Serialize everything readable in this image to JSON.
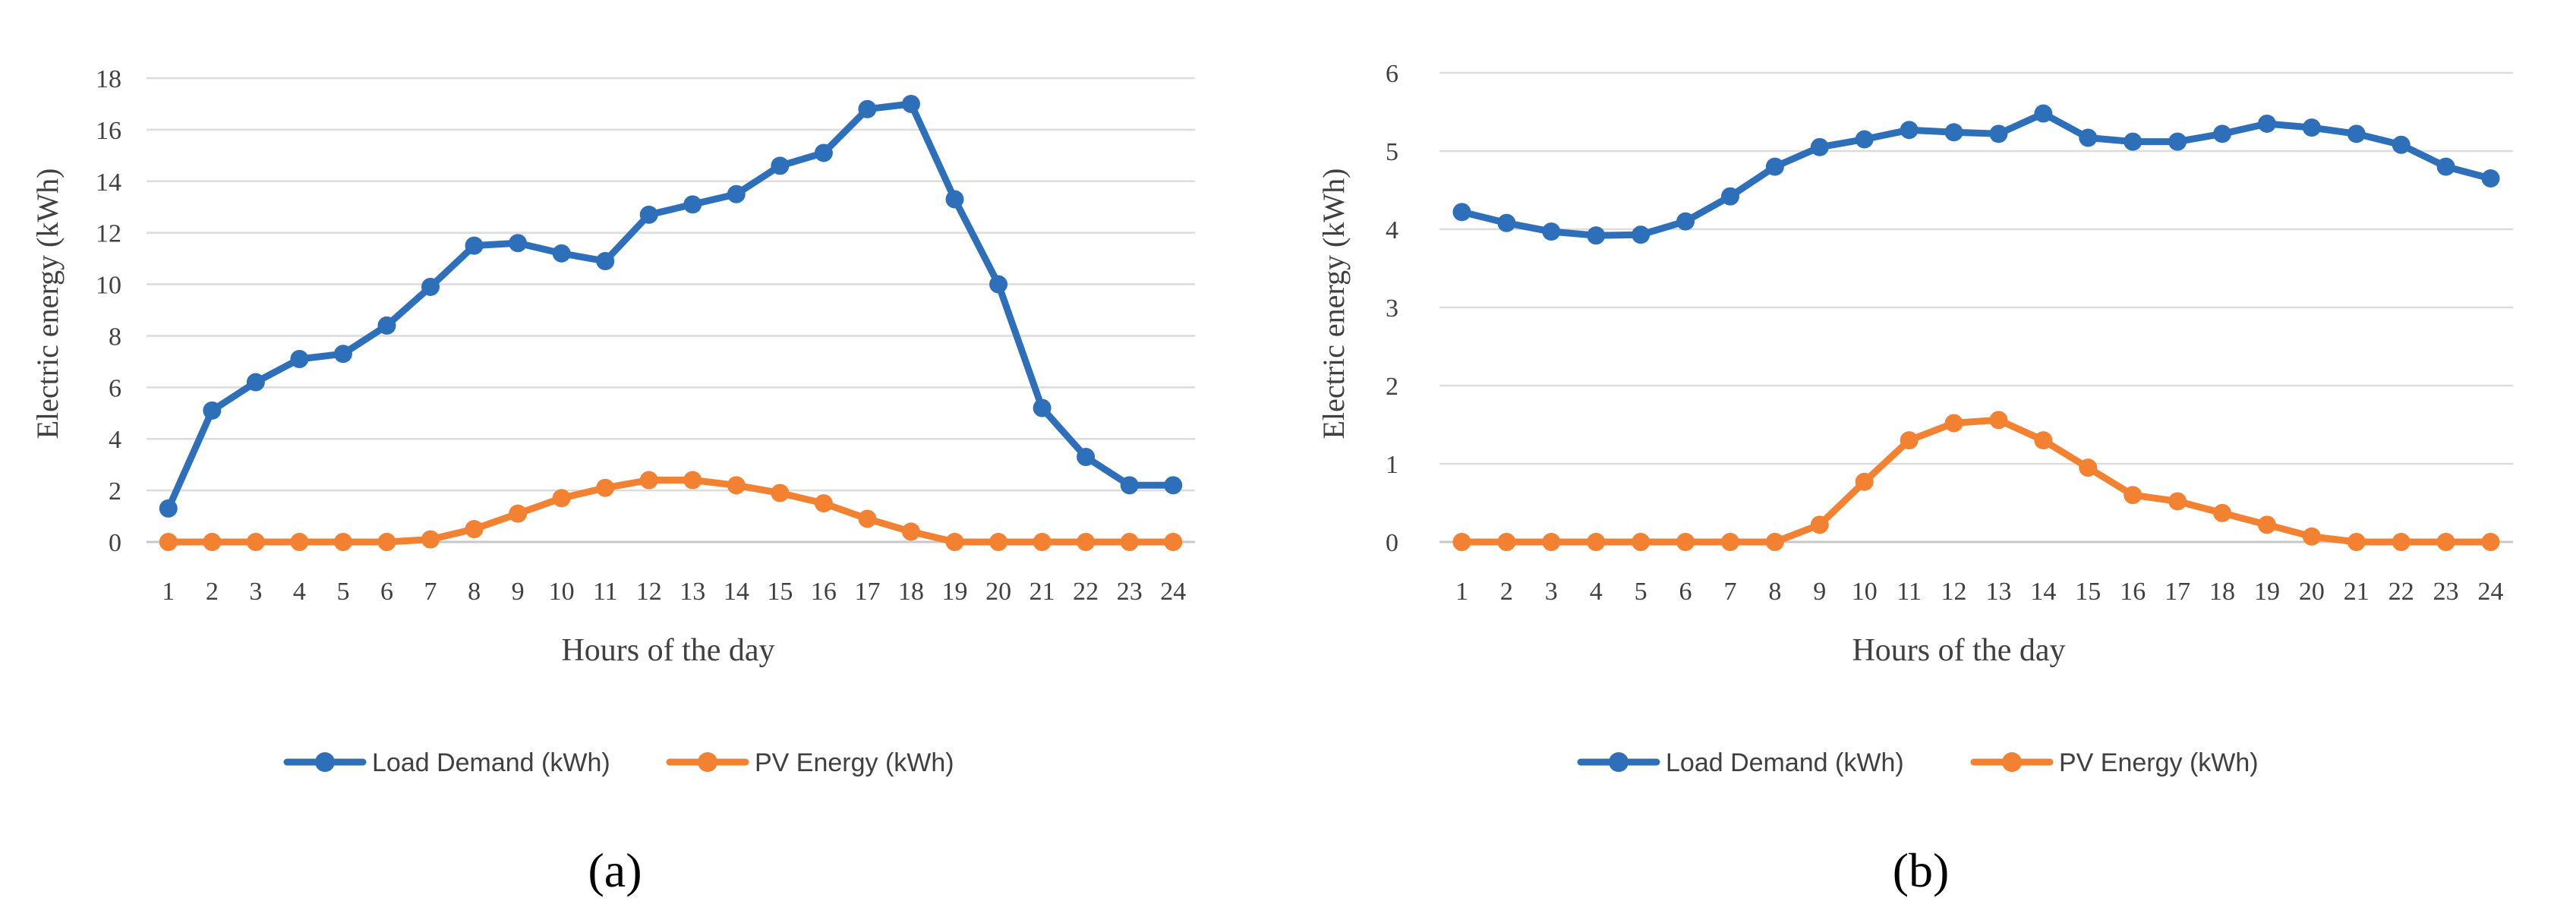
{
  "chart_data": [
    {
      "type": "line",
      "panel_label": "(a)",
      "title": "",
      "xlabel": "Hours of the day",
      "ylabel": "Electric energy (kWh)",
      "categories": [
        "1",
        "2",
        "3",
        "4",
        "5",
        "6",
        "7",
        "8",
        "9",
        "10",
        "11",
        "12",
        "13",
        "14",
        "15",
        "16",
        "17",
        "18",
        "19",
        "20",
        "21",
        "22",
        "23",
        "24"
      ],
      "ylim": [
        0,
        18
      ],
      "yticks": [
        "0",
        "2",
        "4",
        "6",
        "8",
        "10",
        "12",
        "14",
        "16",
        "18"
      ],
      "grid": true,
      "legend_position": "bottom",
      "series": [
        {
          "name": "Load Demand (kWh)",
          "color": "#2e6fba",
          "values": [
            1.3,
            5.1,
            6.2,
            7.1,
            7.3,
            8.4,
            9.9,
            11.5,
            11.6,
            11.2,
            10.9,
            12.7,
            13.1,
            13.5,
            14.6,
            15.1,
            16.8,
            17.0,
            13.3,
            10.0,
            5.2,
            3.3,
            2.2,
            2.2
          ]
        },
        {
          "name": "PV Energy (kWh)",
          "color": "#f28232",
          "values": [
            0,
            0,
            0,
            0,
            0,
            0,
            0.1,
            0.5,
            1.1,
            1.7,
            2.1,
            2.4,
            2.4,
            2.2,
            1.9,
            1.5,
            0.9,
            0.4,
            0,
            0,
            0,
            0,
            0,
            0
          ]
        }
      ]
    },
    {
      "type": "line",
      "panel_label": "(b)",
      "title": "",
      "xlabel": "Hours of the day",
      "ylabel": "Electric energy (kWh)",
      "categories": [
        "1",
        "2",
        "3",
        "4",
        "5",
        "6",
        "7",
        "8",
        "9",
        "10",
        "11",
        "12",
        "13",
        "14",
        "15",
        "16",
        "17",
        "18",
        "19",
        "20",
        "21",
        "22",
        "23",
        "24"
      ],
      "ylim": [
        0,
        6
      ],
      "yticks": [
        "0",
        "1",
        "2",
        "3",
        "4",
        "5",
        "6"
      ],
      "grid": true,
      "legend_position": "bottom",
      "series": [
        {
          "name": "Load Demand (kWh)",
          "color": "#2e6fba",
          "values": [
            4.22,
            4.08,
            3.97,
            3.92,
            3.93,
            4.1,
            4.42,
            4.8,
            5.05,
            5.15,
            5.27,
            5.24,
            5.22,
            5.48,
            5.17,
            5.12,
            5.12,
            5.22,
            5.35,
            5.3,
            5.22,
            5.08,
            4.8,
            4.65
          ]
        },
        {
          "name": "PV Energy (kWh)",
          "color": "#f28232",
          "values": [
            0,
            0,
            0,
            0,
            0,
            0,
            0,
            0,
            0.22,
            0.77,
            1.3,
            1.52,
            1.56,
            1.3,
            0.95,
            0.6,
            0.52,
            0.37,
            0.22,
            0.07,
            0,
            0,
            0,
            0
          ]
        }
      ]
    }
  ]
}
